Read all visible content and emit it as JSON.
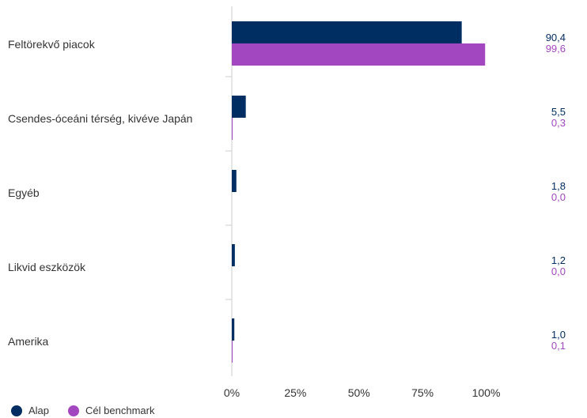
{
  "colors": {
    "alap": "#002d62",
    "benchmark": "#a347c0",
    "axis": "#cccccc",
    "text": "#333333"
  },
  "chart_data": {
    "type": "bar",
    "orientation": "horizontal",
    "categories": [
      "Feltörekvő piacok",
      "Csendes-óceáni térség, kivéve Japán",
      "Egyéb",
      "Likvid eszközök",
      "Amerika"
    ],
    "series": [
      {
        "name": "Alap",
        "values": [
          90.4,
          5.5,
          1.8,
          1.2,
          1.0
        ],
        "labels": [
          "90,4",
          "5,5",
          "1,8",
          "1,2",
          "1,0"
        ]
      },
      {
        "name": "Cél benchmark",
        "values": [
          99.6,
          0.3,
          0.0,
          0.0,
          0.1
        ],
        "labels": [
          "99,6",
          "0,3",
          "0,0",
          "0,0",
          "0,1"
        ]
      }
    ],
    "xlim": [
      0,
      125
    ],
    "xticks": [
      0,
      25,
      50,
      75,
      100
    ],
    "xtick_labels": [
      "0%",
      "25%",
      "50%",
      "75%",
      "100%"
    ],
    "legend_position": "bottom-left",
    "grid": false
  }
}
